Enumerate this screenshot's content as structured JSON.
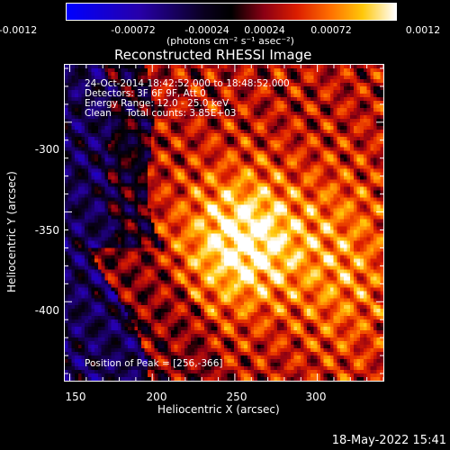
{
  "colorbar": {
    "ticks": [
      "-0.0012",
      "-0.00072",
      "-0.00024",
      "0.00024",
      "0.00072",
      "0.0012"
    ],
    "units": "(photons cm⁻² s⁻¹ asec⁻²)"
  },
  "chart_data": {
    "type": "heatmap",
    "title": "Reconstructed RHESSI Image",
    "xlabel": "Heliocentric X (arcsec)",
    "ylabel": "Heliocentric Y (arcsec)",
    "xlim": [
      147,
      340
    ],
    "ylim": [
      -444,
      -268
    ],
    "x_ticks": [
      150,
      200,
      250,
      300
    ],
    "y_ticks": [
      -300,
      -350,
      -400
    ],
    "value_range": [
      -0.0012,
      0.0012
    ],
    "colormap": "blue-black-red-yellow-white",
    "annotations": [
      "24-Oct-2014 18:42:52.000 to 18:48:52.000",
      "Detectors: 3F 6F 9F, Att 0",
      "Energy Range: 12.0 - 25.0 keV",
      "Clean     Total counts: 3.85E+03"
    ],
    "peak_label": "Position of Peak = [256,-366]",
    "peak": [
      256,
      -366
    ]
  },
  "footer": {
    "date": "18-May-2022 15:41"
  }
}
